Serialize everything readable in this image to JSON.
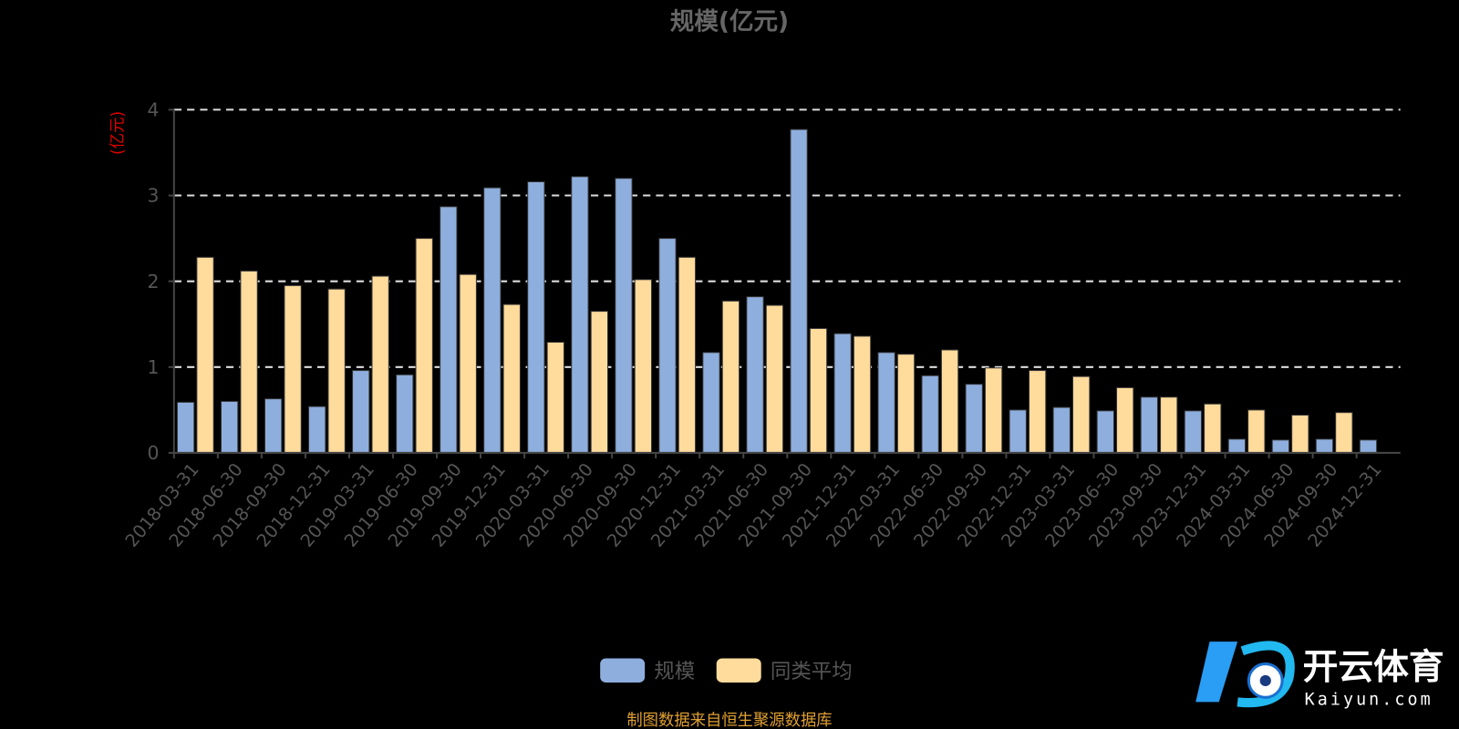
{
  "chart_data": {
    "type": "bar",
    "title": "规模(亿元)",
    "ylabel": "(亿元)",
    "ylim": [
      0,
      4
    ],
    "yticks": [
      "0",
      "1",
      "2",
      "3",
      "4"
    ],
    "grid": true,
    "legend_position": "bottom",
    "categories": [
      "2018-03-31",
      "2018-06-30",
      "2018-09-30",
      "2018-12-31",
      "2019-03-31",
      "2019-06-30",
      "2019-09-30",
      "2019-12-31",
      "2020-03-31",
      "2020-06-30",
      "2020-09-30",
      "2020-12-31",
      "2021-03-31",
      "2021-06-30",
      "2021-09-30",
      "2021-12-31",
      "2022-03-31",
      "2022-06-30",
      "2022-09-30",
      "2022-12-31",
      "2023-03-31",
      "2023-06-30",
      "2023-09-30",
      "2023-12-31",
      "2024-03-31",
      "2024-06-30",
      "2024-09-30",
      "2024-12-31"
    ],
    "series": [
      {
        "name": "规模",
        "color": "#8eaedd",
        "values": [
          0.59,
          0.6,
          0.63,
          0.54,
          0.96,
          0.91,
          2.87,
          3.09,
          3.16,
          3.22,
          3.2,
          2.5,
          1.17,
          1.82,
          3.77,
          1.39,
          1.17,
          0.9,
          0.8,
          0.5,
          0.53,
          0.49,
          0.65,
          0.49,
          0.16,
          0.15,
          0.16,
          0.15
        ]
      },
      {
        "name": "同类平均",
        "color": "#ffdb9c",
        "values": [
          2.28,
          2.12,
          1.95,
          1.91,
          2.06,
          2.5,
          2.08,
          1.73,
          1.29,
          1.65,
          2.02,
          2.28,
          1.77,
          1.72,
          1.45,
          1.36,
          1.15,
          1.2,
          0.99,
          0.96,
          0.89,
          0.76,
          0.65,
          0.57,
          0.5,
          0.44,
          0.47,
          null
        ]
      }
    ]
  },
  "footer": {
    "source": "制图数据来自恒生聚源数据库",
    "color": "#e0a030"
  },
  "watermark": {
    "brand": "开云体育",
    "domain": "Kaiyun.com"
  }
}
